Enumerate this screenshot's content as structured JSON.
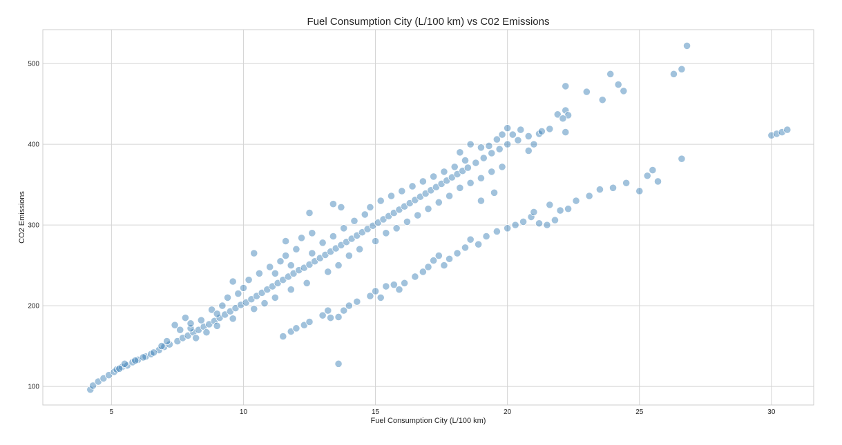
{
  "chart_data": {
    "type": "scatter",
    "title": "Fuel Consumption City (L/100 km) vs C02 Emissions",
    "xlabel": "Fuel Consumption City (L/100 km)",
    "ylabel": "CO2 Emissions",
    "xlim": [
      2.4,
      31.6
    ],
    "ylim": [
      77,
      542
    ],
    "xticks": [
      5,
      10,
      15,
      20,
      25,
      30
    ],
    "yticks": [
      100,
      200,
      300,
      400,
      500
    ],
    "grid": true,
    "point_color": "#2f78b1",
    "series": [
      {
        "points": [
          [
            4.2,
            96
          ],
          [
            4.3,
            101
          ],
          [
            4.5,
            106
          ],
          [
            4.7,
            110
          ],
          [
            4.9,
            114
          ],
          [
            5.1,
            118
          ],
          [
            5.2,
            121
          ],
          [
            5.4,
            124
          ],
          [
            5.6,
            126
          ],
          [
            5.8,
            130
          ],
          [
            6.0,
            133
          ],
          [
            6.3,
            137
          ],
          [
            6.5,
            140
          ],
          [
            6.8,
            145
          ],
          [
            7.0,
            149
          ],
          [
            7.2,
            152
          ],
          [
            7.5,
            156
          ],
          [
            7.7,
            160
          ],
          [
            7.9,
            163
          ],
          [
            8.1,
            167
          ],
          [
            8.3,
            170
          ],
          [
            8.5,
            174
          ],
          [
            8.7,
            177
          ],
          [
            8.9,
            181
          ],
          [
            9.1,
            185
          ],
          [
            9.3,
            189
          ],
          [
            9.5,
            193
          ],
          [
            9.7,
            197
          ],
          [
            9.9,
            201
          ],
          [
            10.1,
            204
          ],
          [
            10.3,
            208
          ],
          [
            10.5,
            212
          ],
          [
            10.7,
            216
          ],
          [
            10.9,
            220
          ],
          [
            11.1,
            224
          ],
          [
            11.3,
            228
          ],
          [
            11.5,
            232
          ],
          [
            11.7,
            236
          ],
          [
            11.9,
            240
          ],
          [
            12.1,
            244
          ],
          [
            12.3,
            247
          ],
          [
            12.5,
            251
          ],
          [
            12.7,
            255
          ],
          [
            12.9,
            259
          ],
          [
            13.1,
            263
          ],
          [
            13.3,
            267
          ],
          [
            13.5,
            271
          ],
          [
            13.7,
            275
          ],
          [
            13.9,
            279
          ],
          [
            14.1,
            283
          ],
          [
            14.3,
            287
          ],
          [
            14.5,
            291
          ],
          [
            14.7,
            295
          ],
          [
            14.9,
            299
          ],
          [
            15.1,
            303
          ],
          [
            15.3,
            307
          ],
          [
            15.5,
            311
          ],
          [
            15.7,
            315
          ],
          [
            15.9,
            319
          ],
          [
            16.1,
            323
          ],
          [
            16.3,
            327
          ],
          [
            16.5,
            331
          ],
          [
            16.7,
            335
          ],
          [
            16.9,
            339
          ],
          [
            17.1,
            343
          ],
          [
            17.3,
            347
          ],
          [
            17.5,
            351
          ],
          [
            17.7,
            355
          ],
          [
            17.9,
            359
          ],
          [
            18.1,
            363
          ],
          [
            18.3,
            367
          ],
          [
            18.5,
            371
          ],
          [
            18.8,
            377
          ],
          [
            19.1,
            383
          ],
          [
            19.4,
            389
          ],
          [
            19.7,
            394
          ],
          [
            20.0,
            400
          ],
          [
            20.4,
            405
          ],
          [
            20.8,
            410
          ],
          [
            21.2,
            413
          ],
          [
            21.3,
            416
          ],
          [
            21.6,
            419
          ],
          [
            21.9,
            437
          ],
          [
            22.2,
            442
          ],
          [
            22.3,
            436
          ],
          [
            22.1,
            432
          ],
          [
            7.4,
            176
          ],
          [
            7.8,
            185
          ],
          [
            8.0,
            172
          ],
          [
            8.4,
            182
          ],
          [
            8.8,
            195
          ],
          [
            9.2,
            200
          ],
          [
            9.4,
            210
          ],
          [
            9.8,
            215
          ],
          [
            10.0,
            222
          ],
          [
            10.2,
            232
          ],
          [
            10.6,
            240
          ],
          [
            11.0,
            248
          ],
          [
            11.4,
            255
          ],
          [
            11.6,
            262
          ],
          [
            12.0,
            270
          ],
          [
            12.2,
            284
          ],
          [
            12.6,
            290
          ],
          [
            13.0,
            278
          ],
          [
            13.4,
            286
          ],
          [
            13.8,
            296
          ],
          [
            14.2,
            305
          ],
          [
            14.6,
            313
          ],
          [
            14.8,
            322
          ],
          [
            15.2,
            330
          ],
          [
            15.6,
            336
          ],
          [
            16.0,
            342
          ],
          [
            16.4,
            348
          ],
          [
            16.8,
            354
          ],
          [
            17.2,
            360
          ],
          [
            17.6,
            366
          ],
          [
            18.0,
            372
          ],
          [
            18.4,
            380
          ],
          [
            18.2,
            390
          ],
          [
            18.6,
            400
          ],
          [
            19.0,
            396
          ],
          [
            19.6,
            406
          ],
          [
            20.2,
            412
          ],
          [
            10.4,
            196
          ],
          [
            10.8,
            203
          ],
          [
            11.2,
            210
          ],
          [
            11.8,
            220
          ],
          [
            12.4,
            228
          ],
          [
            13.2,
            242
          ],
          [
            13.6,
            250
          ],
          [
            14.0,
            262
          ],
          [
            14.4,
            270
          ],
          [
            15.0,
            280
          ],
          [
            15.4,
            290
          ],
          [
            15.8,
            296
          ],
          [
            16.2,
            304
          ],
          [
            16.6,
            312
          ],
          [
            17.0,
            320
          ],
          [
            17.4,
            328
          ],
          [
            17.8,
            336
          ],
          [
            18.2,
            346
          ],
          [
            18.6,
            352
          ],
          [
            19.0,
            358
          ],
          [
            19.4,
            366
          ],
          [
            19.8,
            372
          ],
          [
            8.2,
            160
          ],
          [
            8.6,
            167
          ],
          [
            9.0,
            175
          ],
          [
            9.6,
            184
          ],
          [
            9.0,
            190
          ],
          [
            8.0,
            178
          ],
          [
            7.6,
            170
          ],
          [
            6.6,
            142
          ],
          [
            6.2,
            136
          ],
          [
            5.9,
            132
          ],
          [
            5.5,
            128
          ],
          [
            5.3,
            122
          ],
          [
            6.9,
            150
          ],
          [
            7.1,
            156
          ],
          [
            11.8,
            250
          ],
          [
            11.2,
            240
          ],
          [
            12.6,
            265
          ],
          [
            12.5,
            315
          ],
          [
            13.4,
            326
          ],
          [
            13.7,
            322
          ],
          [
            9.6,
            230
          ],
          [
            10.4,
            265
          ],
          [
            11.6,
            280
          ],
          [
            11.5,
            162
          ],
          [
            11.8,
            168
          ],
          [
            12.0,
            172
          ],
          [
            12.3,
            176
          ],
          [
            12.5,
            180
          ],
          [
            13.0,
            188
          ],
          [
            13.2,
            194
          ],
          [
            13.6,
            186
          ],
          [
            13.6,
            128
          ],
          [
            13.3,
            185
          ],
          [
            13.8,
            194
          ],
          [
            14.0,
            200
          ],
          [
            14.3,
            205
          ],
          [
            14.8,
            212
          ],
          [
            15.0,
            218
          ],
          [
            15.2,
            210
          ],
          [
            15.4,
            224
          ],
          [
            15.7,
            226
          ],
          [
            15.9,
            220
          ],
          [
            16.1,
            228
          ],
          [
            16.5,
            236
          ],
          [
            16.8,
            242
          ],
          [
            17.0,
            248
          ],
          [
            17.2,
            256
          ],
          [
            17.4,
            262
          ],
          [
            17.6,
            250
          ],
          [
            17.8,
            258
          ],
          [
            18.1,
            265
          ],
          [
            18.4,
            272
          ],
          [
            18.6,
            282
          ],
          [
            18.9,
            276
          ],
          [
            19.2,
            286
          ],
          [
            19.6,
            292
          ],
          [
            20.0,
            296
          ],
          [
            20.3,
            300
          ],
          [
            20.6,
            304
          ],
          [
            20.9,
            310
          ],
          [
            21.2,
            302
          ],
          [
            21.5,
            300
          ],
          [
            21.8,
            306
          ],
          [
            22.0,
            318
          ],
          [
            22.3,
            320
          ],
          [
            21.6,
            325
          ],
          [
            21.0,
            316
          ],
          [
            22.6,
            330
          ],
          [
            23.1,
            336
          ],
          [
            23.5,
            344
          ],
          [
            24.0,
            346
          ],
          [
            24.5,
            352
          ],
          [
            25.0,
            342
          ],
          [
            25.3,
            361
          ],
          [
            25.7,
            354
          ],
          [
            25.5,
            368
          ],
          [
            26.6,
            382
          ],
          [
            22.2,
            415
          ],
          [
            22.2,
            472
          ],
          [
            23.0,
            465
          ],
          [
            23.6,
            455
          ],
          [
            24.2,
            474
          ],
          [
            24.4,
            466
          ],
          [
            23.9,
            487
          ],
          [
            26.3,
            487
          ],
          [
            26.6,
            493
          ],
          [
            26.8,
            522
          ],
          [
            30.0,
            411
          ],
          [
            30.2,
            413
          ],
          [
            30.4,
            415
          ],
          [
            30.6,
            418
          ],
          [
            19.0,
            330
          ],
          [
            19.5,
            340
          ],
          [
            20.0,
            420
          ],
          [
            20.5,
            418
          ],
          [
            21.0,
            400
          ],
          [
            20.8,
            392
          ],
          [
            19.8,
            412
          ],
          [
            19.3,
            398
          ]
        ]
      }
    ]
  }
}
